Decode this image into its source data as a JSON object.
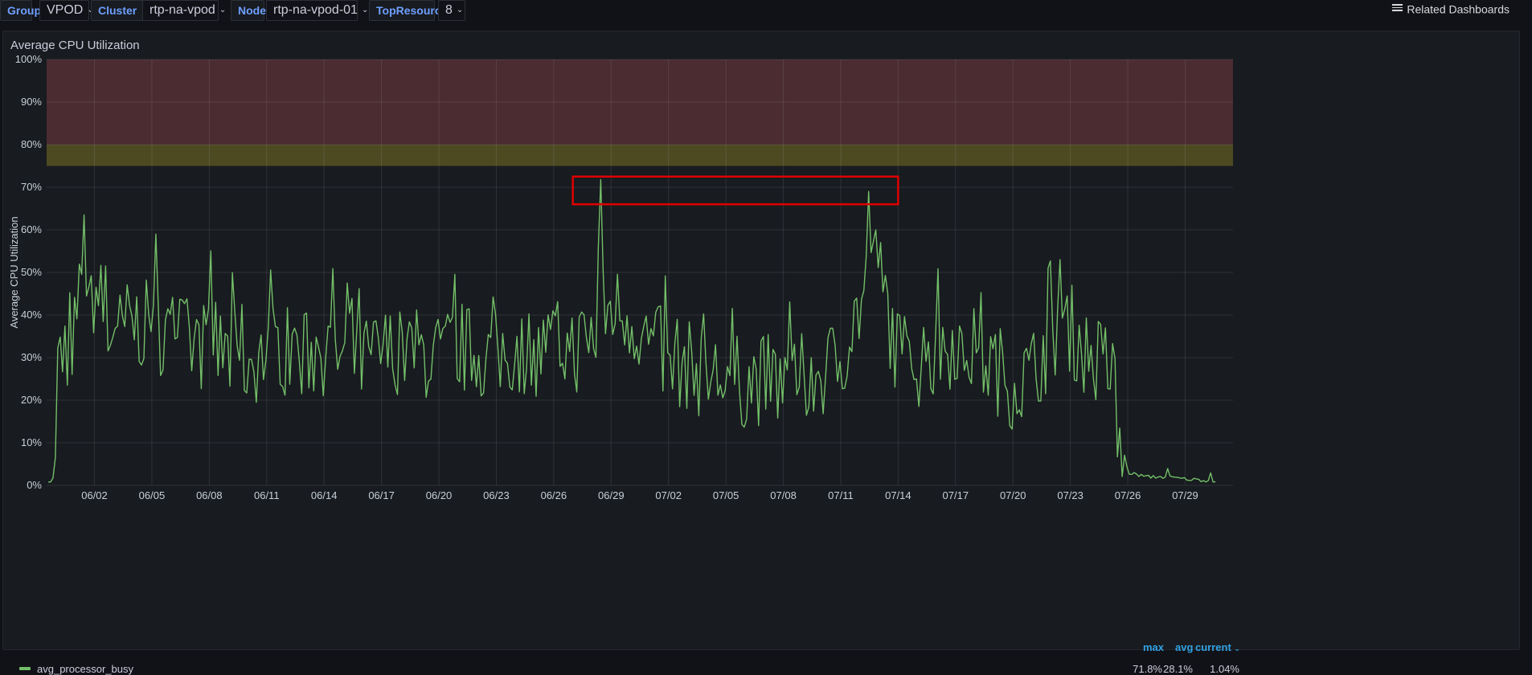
{
  "variables": [
    {
      "label": "Group",
      "value": "VPOD"
    },
    {
      "label": "Cluster",
      "value": "rtp-na-vpod"
    },
    {
      "label": "Node",
      "value": "rtp-na-vpod-01"
    },
    {
      "label": "TopResources",
      "value": "8"
    }
  ],
  "related_dashboards_label": "Related Dashboards",
  "panel": {
    "title": "Average CPU Utilization"
  },
  "colors": {
    "series": "#73bf69",
    "threshold_red": "#4a2c31",
    "threshold_yellow": "#4d4a22",
    "highlight_box": "#e00000",
    "legend_header": "#33a2e5"
  },
  "chart_data": {
    "type": "line",
    "ylabel": "Average CPU Utilization",
    "ylim": [
      0,
      100
    ],
    "y_ticks": [
      "0%",
      "10%",
      "20%",
      "30%",
      "40%",
      "50%",
      "60%",
      "70%",
      "80%",
      "90%",
      "100%"
    ],
    "x_ticks": [
      "06/02",
      "06/05",
      "06/08",
      "06/11",
      "06/14",
      "06/17",
      "06/20",
      "06/23",
      "06/26",
      "06/29",
      "07/02",
      "07/05",
      "07/08",
      "07/11",
      "07/14",
      "07/17",
      "07/20",
      "07/23",
      "07/26",
      "07/29"
    ],
    "thresholds": [
      {
        "from": 80,
        "to": 100,
        "color": "red"
      },
      {
        "from": 75,
        "to": 80,
        "color": "yellow"
      }
    ],
    "grid": true,
    "series": [
      {
        "name": "avg_processor_busy",
        "points": [
          [
            "05/31",
            31
          ],
          [
            "06/01",
            35
          ],
          [
            "06/02",
            46
          ],
          [
            "06/03",
            36
          ],
          [
            "06/04",
            38
          ],
          [
            "06/05",
            37
          ],
          [
            "06/06",
            36
          ],
          [
            "06/07",
            33
          ],
          [
            "06/08",
            33
          ],
          [
            "06/09",
            30
          ],
          [
            "06/10",
            29
          ],
          [
            "06/11",
            31
          ],
          [
            "06/12",
            32
          ],
          [
            "06/13",
            31
          ],
          [
            "06/14",
            32
          ],
          [
            "06/15",
            30
          ],
          [
            "06/16",
            29
          ],
          [
            "06/17",
            31
          ],
          [
            "06/18",
            32
          ],
          [
            "06/19",
            31
          ],
          [
            "06/20",
            30
          ],
          [
            "06/21",
            32
          ],
          [
            "06/22",
            31
          ],
          [
            "06/23",
            30
          ],
          [
            "06/24",
            32
          ],
          [
            "06/25",
            31
          ],
          [
            "06/26",
            33
          ],
          [
            "06/27",
            32
          ],
          [
            "06/28",
            34
          ],
          [
            "06/29",
            42
          ],
          [
            "06/30",
            40
          ],
          [
            "07/01",
            33
          ],
          [
            "07/02",
            30
          ],
          [
            "07/03",
            28
          ],
          [
            "07/04",
            26
          ],
          [
            "07/05",
            25
          ],
          [
            "07/06",
            24
          ],
          [
            "07/07",
            25
          ],
          [
            "07/08",
            24
          ],
          [
            "07/09",
            25
          ],
          [
            "07/10",
            26
          ],
          [
            "07/11",
            30
          ],
          [
            "07/12",
            42
          ],
          [
            "07/13",
            50
          ],
          [
            "07/14",
            30
          ],
          [
            "07/15",
            29
          ],
          [
            "07/16",
            32
          ],
          [
            "07/17",
            34
          ],
          [
            "07/18",
            31
          ],
          [
            "07/19",
            28
          ],
          [
            "07/20",
            24
          ],
          [
            "07/21",
            26
          ],
          [
            "07/22",
            35
          ],
          [
            "07/23",
            37
          ],
          [
            "07/24",
            30
          ],
          [
            "07/25",
            28
          ],
          [
            "07/26",
            3
          ],
          [
            "07/27",
            2
          ],
          [
            "07/28",
            2
          ],
          [
            "07/29",
            1.5
          ],
          [
            "07/30",
            1.2
          ],
          [
            "07/31",
            1
          ]
        ],
        "notable_peaks": [
          {
            "x": "06/01",
            "y": 63.5
          },
          {
            "x": "06/28",
            "y": 71.8
          },
          {
            "x": "07/12",
            "y": 69
          },
          {
            "x": "07/22",
            "y": 53
          }
        ]
      }
    ],
    "highlight_box": {
      "x_from": "06/27",
      "x_to": "07/14",
      "y_from": 66,
      "y_to": 72.5
    },
    "legend": {
      "placement": "bottom",
      "columns": [
        "max",
        "avg",
        "current"
      ],
      "sorted_column": "current",
      "rows": [
        {
          "name": "avg_processor_busy",
          "max": "71.8%",
          "avg": "28.1%",
          "current": "1.04%"
        }
      ]
    }
  }
}
